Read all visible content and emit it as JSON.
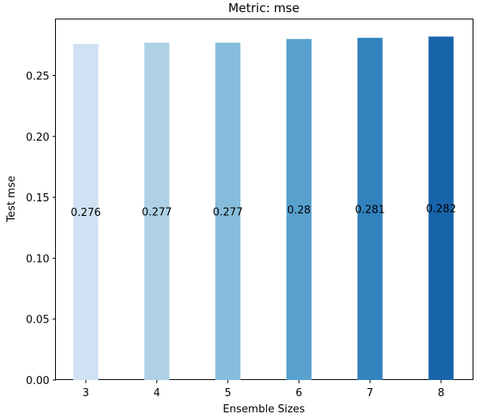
{
  "chart_data": {
    "type": "bar",
    "title": "Metric: mse",
    "xlabel": "Ensemble Sizes",
    "ylabel": "Test mse",
    "categories": [
      "3",
      "4",
      "5",
      "6",
      "7",
      "8"
    ],
    "values": [
      0.276,
      0.277,
      0.277,
      0.28,
      0.281,
      0.282
    ],
    "data_labels": [
      "0.276",
      "0.277",
      "0.277",
      "0.28",
      "0.281",
      "0.282"
    ],
    "ylim": [
      0,
      0.2961
    ],
    "yticks": [
      0.0,
      0.05,
      0.1,
      0.15,
      0.2,
      0.25
    ],
    "ytick_labels": [
      "0.00",
      "0.05",
      "0.10",
      "0.15",
      "0.20",
      "0.25"
    ],
    "bar_colors": [
      "#cfe1f2",
      "#afd1e7",
      "#87bddc",
      "#58a1cf",
      "#3282be",
      "#1764ab"
    ],
    "grid": false,
    "legend": "none"
  }
}
